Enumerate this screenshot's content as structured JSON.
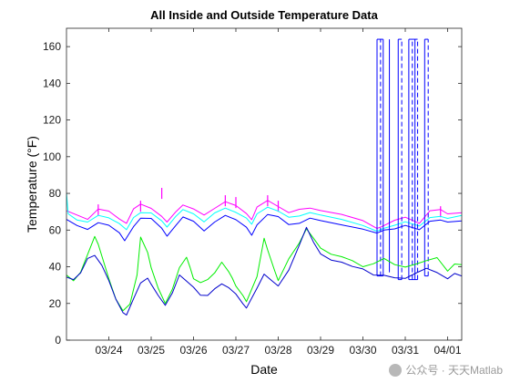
{
  "chart_data": {
    "type": "line",
    "title": "All Inside and Outside Temperature Data",
    "xlabel": "Date",
    "ylabel": "Temperature (°F)",
    "x_unit": "day",
    "xlim": [
      "03/23 00:00",
      "04/01 08:00"
    ],
    "ylim": [
      0,
      170
    ],
    "yticks": [
      0,
      20,
      40,
      60,
      80,
      100,
      120,
      140,
      160
    ],
    "xticks": [
      {
        "value": "03/24",
        "label": "03/24"
      },
      {
        "value": "03/25",
        "label": "03/25"
      },
      {
        "value": "03/26",
        "label": "03/26"
      },
      {
        "value": "03/27",
        "label": "03/27"
      },
      {
        "value": "03/28",
        "label": "03/28"
      },
      {
        "value": "03/29",
        "label": "03/29"
      },
      {
        "value": "03/30",
        "label": "03/30"
      },
      {
        "value": "03/31",
        "label": "03/31"
      },
      {
        "value": "04/01",
        "label": "04/01"
      }
    ],
    "grid": false,
    "legend": "none",
    "colors": {
      "magenta": "#ff00ff",
      "cyan": "#00ffff",
      "blue": "#0000ff",
      "navy": "#0000cc",
      "green": "#00ee00"
    },
    "series": [
      {
        "color": "#ff00ff",
        "style": "solid",
        "points": [
          [
            "03/23 00:00",
            70
          ],
          [
            "03/23 06:00",
            68
          ],
          [
            "03/23 12:00",
            66
          ],
          [
            "03/23 18:00",
            72
          ],
          [
            "03/24 00:00",
            70
          ],
          [
            "03/24 06:00",
            66
          ],
          [
            "03/24 10:00",
            64
          ],
          [
            "03/24 14:00",
            71
          ],
          [
            "03/24 18:00",
            74
          ],
          [
            "03/25 00:00",
            72
          ],
          [
            "03/25 06:00",
            68
          ],
          [
            "03/25 09:00",
            64
          ],
          [
            "03/25 14:00",
            70
          ],
          [
            "03/25 18:00",
            74
          ],
          [
            "03/26 00:00",
            71
          ],
          [
            "03/26 06:00",
            68
          ],
          [
            "03/26 12:00",
            72
          ],
          [
            "03/26 18:00",
            76
          ],
          [
            "03/27 00:00",
            73
          ],
          [
            "03/27 06:00",
            69
          ],
          [
            "03/27 09:00",
            66
          ],
          [
            "03/27 12:00",
            72
          ],
          [
            "03/27 18:00",
            76
          ],
          [
            "03/28 00:00",
            73
          ],
          [
            "03/28 06:00",
            70
          ],
          [
            "03/28 12:00",
            71
          ],
          [
            "03/28 18:00",
            72
          ],
          [
            "03/29 00:00",
            71
          ],
          [
            "03/29 12:00",
            68
          ],
          [
            "03/30 00:00",
            65
          ],
          [
            "03/30 08:00",
            61
          ],
          [
            "03/30 12:00",
            63
          ],
          [
            "03/30 18:00",
            65
          ],
          [
            "03/31 00:00",
            67
          ],
          [
            "03/31 08:00",
            64
          ],
          [
            "03/31 14:00",
            70
          ],
          [
            "03/31 20:00",
            71
          ],
          [
            "04/01 00:00",
            69
          ],
          [
            "04/01 08:00",
            70
          ]
        ],
        "spikes": [
          [
            "03/23 18:00",
            74
          ],
          [
            "03/24 18:00",
            76
          ],
          [
            "03/25 06:00",
            83
          ],
          [
            "03/26 18:00",
            79
          ],
          [
            "03/27 00:00",
            78
          ],
          [
            "03/27 18:00",
            79
          ],
          [
            "03/28 00:00",
            76
          ],
          [
            "03/31 20:00",
            73
          ]
        ]
      },
      {
        "color": "#00ffff",
        "style": "solid",
        "points": [
          [
            "03/23 00:00",
            80
          ],
          [
            "03/23 01:00",
            69
          ],
          [
            "03/23 06:00",
            66
          ],
          [
            "03/23 12:00",
            64
          ],
          [
            "03/23 18:00",
            68
          ],
          [
            "03/24 00:00",
            67
          ],
          [
            "03/24 06:00",
            63
          ],
          [
            "03/24 10:00",
            60
          ],
          [
            "03/24 14:00",
            67
          ],
          [
            "03/24 18:00",
            70
          ],
          [
            "03/25 00:00",
            69
          ],
          [
            "03/25 06:00",
            65
          ],
          [
            "03/25 09:00",
            62
          ],
          [
            "03/25 14:00",
            67
          ],
          [
            "03/25 18:00",
            71
          ],
          [
            "03/26 00:00",
            69
          ],
          [
            "03/26 06:00",
            65
          ],
          [
            "03/26 12:00",
            69
          ],
          [
            "03/26 18:00",
            72
          ],
          [
            "03/27 00:00",
            70
          ],
          [
            "03/27 06:00",
            66
          ],
          [
            "03/27 09:00",
            63
          ],
          [
            "03/27 12:00",
            69
          ],
          [
            "03/27 18:00",
            73
          ],
          [
            "03/28 00:00",
            70
          ],
          [
            "03/28 06:00",
            67
          ],
          [
            "03/28 12:00",
            68
          ],
          [
            "03/28 18:00",
            69
          ],
          [
            "03/29 00:00",
            68
          ],
          [
            "03/29 12:00",
            66
          ],
          [
            "03/30 00:00",
            63
          ],
          [
            "03/30 08:00",
            59
          ],
          [
            "03/30 12:00",
            61
          ],
          [
            "03/30 18:00",
            63
          ],
          [
            "03/31 00:00",
            64
          ],
          [
            "03/31 08:00",
            62
          ],
          [
            "03/31 14:00",
            67
          ],
          [
            "03/31 20:00",
            68
          ],
          [
            "04/01 00:00",
            66
          ],
          [
            "04/01 08:00",
            68
          ]
        ]
      },
      {
        "color": "#0000ff",
        "style": "solid",
        "points": [
          [
            "03/23 00:00",
            66
          ],
          [
            "03/23 06:00",
            63
          ],
          [
            "03/23 12:00",
            60
          ],
          [
            "03/23 18:00",
            64
          ],
          [
            "03/24 00:00",
            63
          ],
          [
            "03/24 06:00",
            58
          ],
          [
            "03/24 09:00",
            54
          ],
          [
            "03/24 14:00",
            62
          ],
          [
            "03/24 18:00",
            67
          ],
          [
            "03/25 00:00",
            66
          ],
          [
            "03/25 06:00",
            61
          ],
          [
            "03/25 09:00",
            57
          ],
          [
            "03/25 14:00",
            62
          ],
          [
            "03/25 18:00",
            67
          ],
          [
            "03/26 00:00",
            65
          ],
          [
            "03/26 06:00",
            60
          ],
          [
            "03/26 12:00",
            64
          ],
          [
            "03/26 18:00",
            68
          ],
          [
            "03/27 00:00",
            66
          ],
          [
            "03/27 06:00",
            61
          ],
          [
            "03/27 09:00",
            57
          ],
          [
            "03/27 12:00",
            63
          ],
          [
            "03/27 18:00",
            69
          ],
          [
            "03/28 00:00",
            67
          ],
          [
            "03/28 06:00",
            63
          ],
          [
            "03/28 12:00",
            64
          ],
          [
            "03/28 18:00",
            66
          ],
          [
            "03/29 00:00",
            65
          ],
          [
            "03/29 12:00",
            63
          ],
          [
            "03/30 00:00",
            61
          ],
          [
            "03/30 08:00",
            58
          ],
          [
            "03/30 12:00",
            60
          ],
          [
            "03/30 18:00",
            61
          ],
          [
            "03/31 00:00",
            62
          ],
          [
            "03/31 08:00",
            60
          ],
          [
            "03/31 14:00",
            65
          ],
          [
            "03/31 20:00",
            66
          ],
          [
            "04/01 00:00",
            64
          ],
          [
            "04/01 08:00",
            65
          ]
        ],
        "dropouts": [
          {
            "x": [
              "03/30 08:00",
              "03/30 10:00",
              "03/30 11:30"
            ],
            "bottom": 35,
            "top": 164
          },
          {
            "x": [
              "03/30 15:00"
            ],
            "bottom": 37,
            "top": 164
          },
          {
            "x": [
              "03/30 20:00",
              "03/30 22:00"
            ],
            "bottom": 33,
            "top": 164
          },
          {
            "x": [
              "03/31 02:00",
              "03/31 04:00",
              "03/31 05:30",
              "03/31 07:00"
            ],
            "bottom": 33,
            "top": 164
          },
          {
            "x": [
              "03/31 11:00",
              "03/31 13:00"
            ],
            "bottom": 35,
            "top": 164
          }
        ]
      },
      {
        "color": "#00ee00",
        "style": "solid",
        "points": [
          [
            "03/23 00:00",
            36
          ],
          [
            "03/23 04:00",
            32
          ],
          [
            "03/23 08:00",
            37
          ],
          [
            "03/23 12:00",
            47
          ],
          [
            "03/23 16:00",
            56
          ],
          [
            "03/23 18:00",
            52
          ],
          [
            "03/23 22:00",
            40
          ],
          [
            "03/24 00:00",
            34
          ],
          [
            "03/24 04:00",
            22
          ],
          [
            "03/24 08:00",
            16
          ],
          [
            "03/24 12:00",
            20
          ],
          [
            "03/24 16:00",
            35
          ],
          [
            "03/24 18:00",
            56
          ],
          [
            "03/24 22:00",
            48
          ],
          [
            "03/25 00:00",
            40
          ],
          [
            "03/25 04:00",
            28
          ],
          [
            "03/25 08:00",
            20
          ],
          [
            "03/25 12:00",
            28
          ],
          [
            "03/25 16:00",
            39
          ],
          [
            "03/25 20:00",
            45
          ],
          [
            "03/25 22:00",
            40
          ],
          [
            "03/26 00:00",
            34
          ],
          [
            "03/26 04:00",
            31
          ],
          [
            "03/26 08:00",
            33
          ],
          [
            "03/26 12:00",
            37
          ],
          [
            "03/26 16:00",
            42
          ],
          [
            "03/26 20:00",
            37
          ],
          [
            "03/26 22:00",
            34
          ],
          [
            "03/27 00:00",
            30
          ],
          [
            "03/27 04:00",
            24
          ],
          [
            "03/27 06:00",
            21
          ],
          [
            "03/27 12:00",
            35
          ],
          [
            "03/27 16:00",
            55
          ],
          [
            "03/27 18:00",
            49
          ],
          [
            "03/27 22:00",
            38
          ],
          [
            "03/28 00:00",
            33
          ],
          [
            "03/28 06:00",
            44
          ],
          [
            "03/28 12:00",
            53
          ],
          [
            "03/28 16:00",
            61
          ],
          [
            "03/28 20:00",
            55
          ],
          [
            "03/29 00:00",
            50
          ],
          [
            "03/29 06:00",
            47
          ],
          [
            "03/29 12:00",
            46
          ],
          [
            "03/29 18:00",
            43
          ],
          [
            "03/30 00:00",
            40
          ],
          [
            "03/30 06:00",
            42
          ],
          [
            "03/30 12:00",
            44
          ],
          [
            "03/30 18:00",
            41
          ],
          [
            "03/31 00:00",
            40
          ],
          [
            "03/31 06:00",
            42
          ],
          [
            "03/31 12:00",
            43
          ],
          [
            "03/31 18:00",
            45
          ],
          [
            "04/01 00:00",
            38
          ],
          [
            "04/01 04:00",
            41
          ],
          [
            "04/01 08:00",
            41
          ]
        ]
      },
      {
        "color": "#0000cc",
        "style": "solid",
        "points": [
          [
            "03/23 00:00",
            34
          ],
          [
            "03/23 04:00",
            33
          ],
          [
            "03/23 08:00",
            37
          ],
          [
            "03/23 12:00",
            44
          ],
          [
            "03/23 16:00",
            46
          ],
          [
            "03/23 20:00",
            41
          ],
          [
            "03/24 00:00",
            33
          ],
          [
            "03/24 04:00",
            22
          ],
          [
            "03/24 08:00",
            15
          ],
          [
            "03/24 10:00",
            14
          ],
          [
            "03/24 14:00",
            22
          ],
          [
            "03/24 18:00",
            31
          ],
          [
            "03/24 22:00",
            34
          ],
          [
            "03/25 00:00",
            31
          ],
          [
            "03/25 04:00",
            24
          ],
          [
            "03/25 08:00",
            19
          ],
          [
            "03/25 12:00",
            26
          ],
          [
            "03/25 16:00",
            35
          ],
          [
            "03/25 20:00",
            32
          ],
          [
            "03/26 00:00",
            29
          ],
          [
            "03/26 04:00",
            25
          ],
          [
            "03/26 08:00",
            24
          ],
          [
            "03/26 12:00",
            28
          ],
          [
            "03/26 16:00",
            31
          ],
          [
            "03/26 20:00",
            28
          ],
          [
            "03/27 00:00",
            25
          ],
          [
            "03/27 04:00",
            20
          ],
          [
            "03/27 06:00",
            18
          ],
          [
            "03/27 12:00",
            28
          ],
          [
            "03/27 16:00",
            36
          ],
          [
            "03/27 20:00",
            33
          ],
          [
            "03/28 00:00",
            29
          ],
          [
            "03/28 06:00",
            38
          ],
          [
            "03/28 12:00",
            52
          ],
          [
            "03/28 16:00",
            62
          ],
          [
            "03/28 20:00",
            53
          ],
          [
            "03/29 00:00",
            47
          ],
          [
            "03/29 06:00",
            44
          ],
          [
            "03/29 12:00",
            42
          ],
          [
            "03/29 18:00",
            40
          ],
          [
            "03/30 00:00",
            39
          ],
          [
            "03/30 06:00",
            36
          ],
          [
            "03/30 12:00",
            35
          ],
          [
            "03/30 18:00",
            34
          ],
          [
            "03/31 00:00",
            34
          ],
          [
            "03/31 06:00",
            36
          ],
          [
            "03/31 12:00",
            39
          ],
          [
            "03/31 18:00",
            37
          ],
          [
            "04/01 00:00",
            34
          ],
          [
            "04/01 04:00",
            36
          ],
          [
            "04/01 08:00",
            35
          ]
        ]
      }
    ]
  },
  "watermark": {
    "text": "公众号 · 天天Matlab",
    "icon": "wechat-logo-icon"
  }
}
